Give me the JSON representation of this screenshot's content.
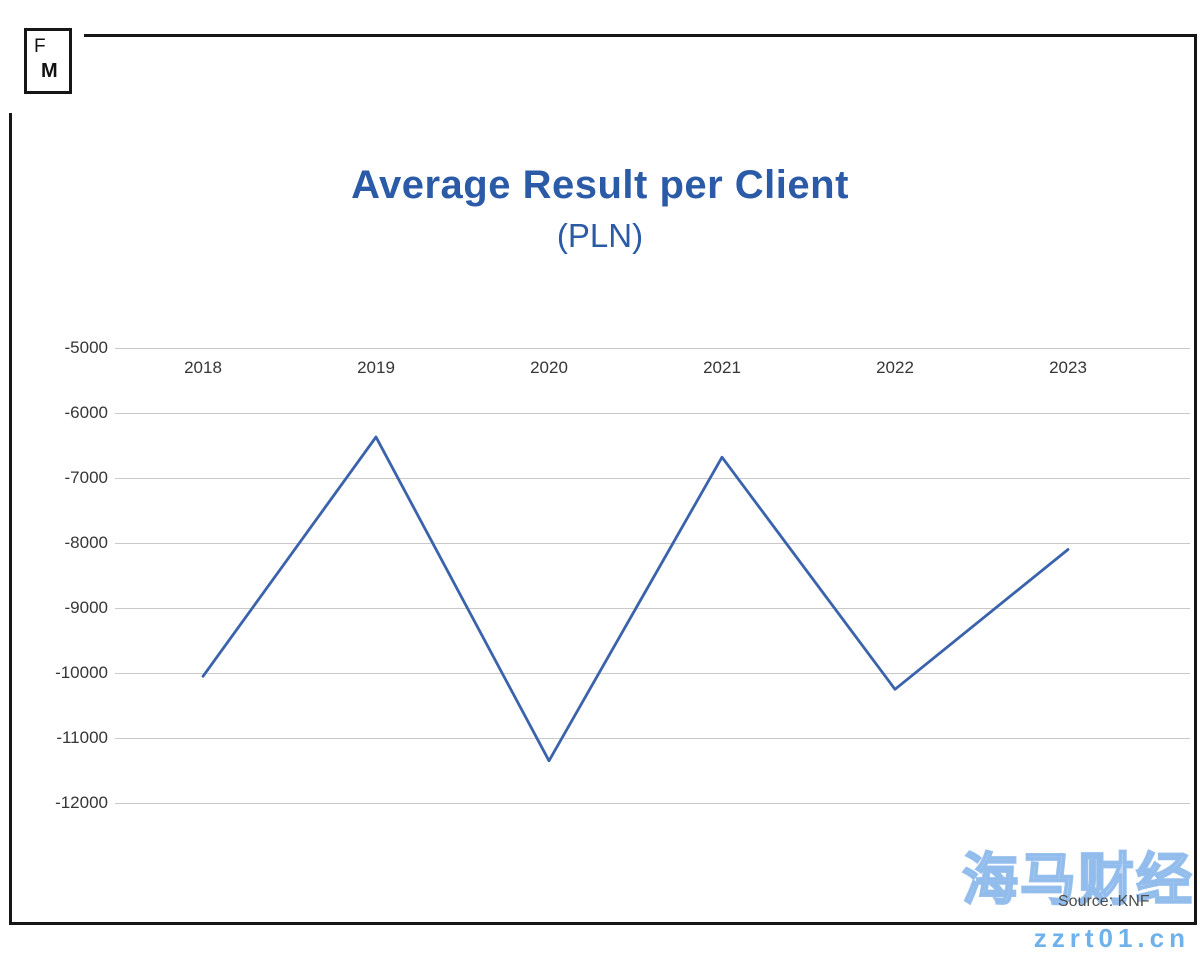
{
  "logo": {
    "line1": "F",
    "line2": "M"
  },
  "chart_data": {
    "type": "line",
    "title": "Average Result per Client",
    "subtitle": "(PLN)",
    "categories": [
      "2018",
      "2019",
      "2020",
      "2021",
      "2022",
      "2023"
    ],
    "values": [
      -10050,
      -6370,
      -11350,
      -6680,
      -10250,
      -8100
    ],
    "series": [
      {
        "name": "Average Result per Client (PLN)",
        "values": [
          -10050,
          -6370,
          -11350,
          -6680,
          -10250,
          -8100
        ]
      }
    ],
    "y_ticks": [
      -5000,
      -6000,
      -7000,
      -8000,
      -9000,
      -10000,
      -11000,
      -12000
    ],
    "ylim": [
      -12000,
      -5000
    ],
    "xlabel": "",
    "ylabel": "",
    "grid": true,
    "legend": "none",
    "line_color": "#3a63ac",
    "title_color": "#2b5ba6",
    "grid_color": "#c9c9c9"
  },
  "footer": {
    "source": "Source: KNF"
  },
  "watermark": {
    "title": "海马财经",
    "url": "zzrt01.cn"
  }
}
